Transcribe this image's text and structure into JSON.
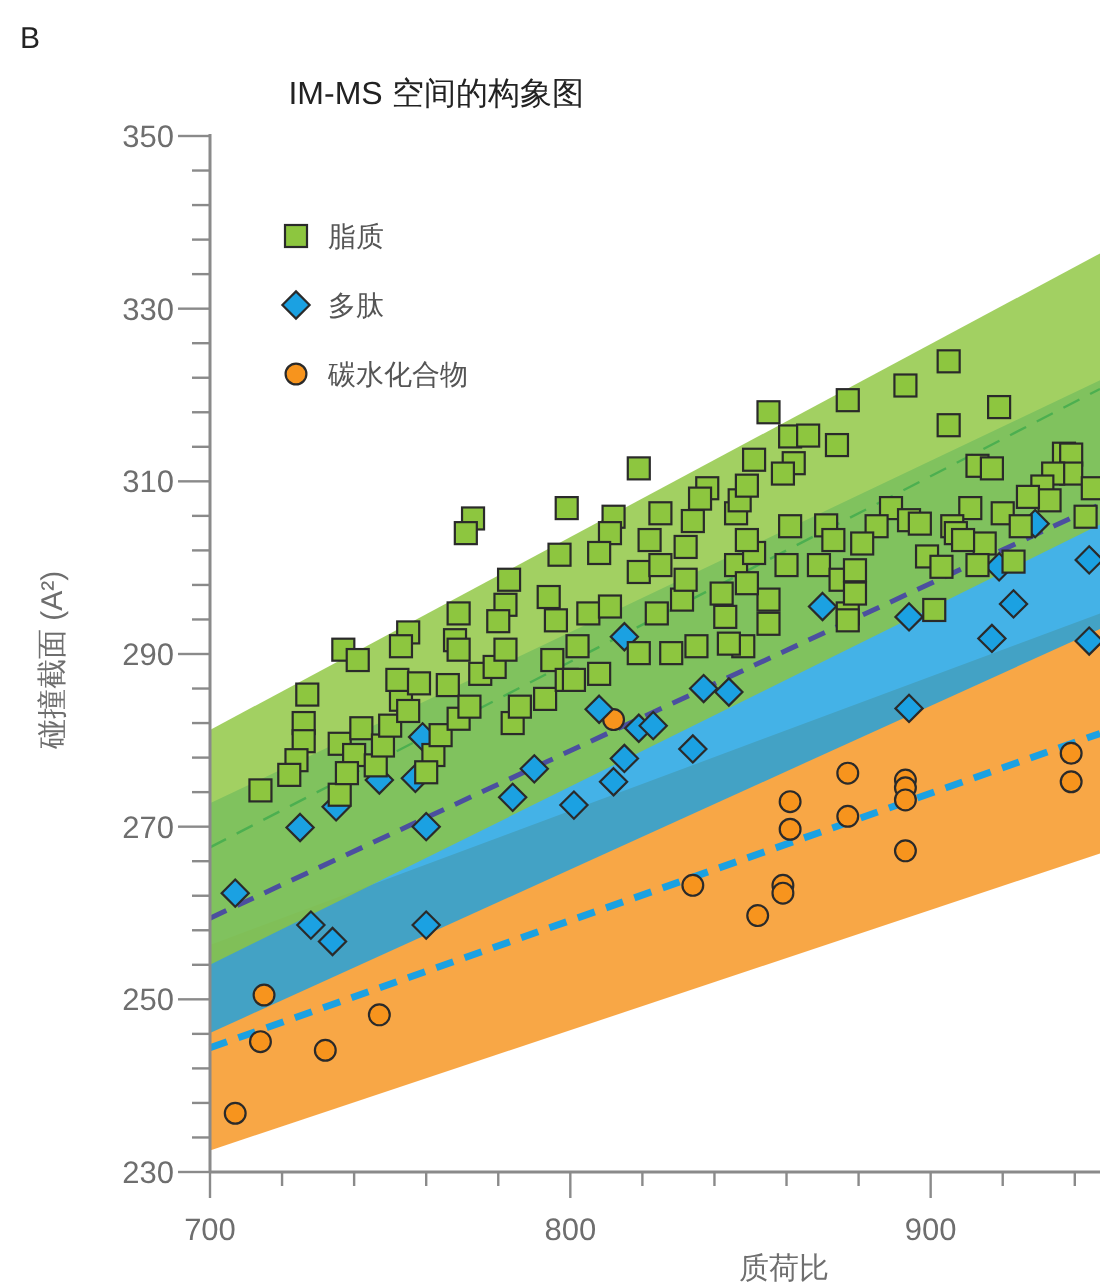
{
  "chart_data": {
    "type": "scatter",
    "title": "IM-MS 空间的构象图",
    "xlabel": "质荷比",
    "ylabel": "碰撞截面 (A²)",
    "annotations": [
      "B"
    ],
    "legend": "top left",
    "xlim": [
      700,
      947
    ],
    "ylim": [
      230,
      350
    ],
    "xticks": [
      700,
      {
        "value": 720,
        "label": null
      },
      {
        "value": 740,
        "label": null
      },
      {
        "value": 760,
        "label": null
      },
      {
        "value": 780,
        "label": null
      },
      800,
      {
        "value": 820,
        "label": null
      },
      {
        "value": 840,
        "label": null
      },
      {
        "value": 860,
        "label": null
      },
      {
        "value": 880,
        "label": null
      },
      900,
      {
        "value": 920,
        "label": null
      },
      {
        "value": 940,
        "label": null
      }
    ],
    "yticks": [
      230,
      {
        "value": 234,
        "label": null
      },
      {
        "value": 238,
        "label": null
      },
      {
        "value": 242,
        "label": null
      },
      {
        "value": 246,
        "label": null
      },
      250,
      {
        "value": 254,
        "label": null
      },
      {
        "value": 258,
        "label": null
      },
      {
        "value": 262,
        "label": null
      },
      {
        "value": 266,
        "label": null
      },
      270,
      {
        "value": 274,
        "label": null
      },
      {
        "value": 278,
        "label": null
      },
      {
        "value": 282,
        "label": null
      },
      {
        "value": 286,
        "label": null
      },
      290,
      {
        "value": 294,
        "label": null
      },
      {
        "value": 298,
        "label": null
      },
      {
        "value": 302,
        "label": null
      },
      {
        "value": 306,
        "label": null
      },
      310,
      {
        "value": 314,
        "label": null
      },
      {
        "value": 318,
        "label": null
      },
      {
        "value": 322,
        "label": null
      },
      {
        "value": 326,
        "label": null
      },
      330,
      {
        "value": 334,
        "label": null
      },
      {
        "value": 338,
        "label": null
      },
      {
        "value": 342,
        "label": null
      },
      {
        "value": 346,
        "label": null
      },
      350
    ],
    "series": [
      {
        "name": "脂质",
        "type": "scatter",
        "marker": "square",
        "color": "#8dc63f",
        "x": [
          773,
          771,
          799,
          797,
          783,
          782,
          769,
          780,
          755,
          753,
          737,
          741,
          768,
          794,
          796,
          727,
          726,
          726,
          724,
          722,
          714,
          736,
          740,
          736,
          738,
          742,
          746,
          748,
          750,
          753,
          752,
          758,
          755,
          762,
          760,
          764,
          766,
          769,
          772,
          775,
          779,
          784,
          786,
          793,
          782,
          795,
          799,
          769,
          855,
          819,
          812,
          825,
          811,
          808,
          822,
          832,
          834,
          838,
          836,
          846,
          847,
          849,
          851,
          861,
          866,
          862,
          859,
          874,
          877,
          819,
          825,
          831,
          842,
          846,
          851,
          849,
          861,
          860,
          871,
          873,
          869,
          875,
          855,
          855,
          835,
          843,
          828,
          819,
          805,
          802,
          811,
          832,
          824,
          848,
          877,
          849,
          905,
          893,
          919,
          905,
          913,
          917,
          937,
          939,
          939,
          934,
          931,
          945,
          933,
          927,
          920,
          925,
          943,
          911,
          889,
          885,
          894,
          897,
          906,
          907,
          915,
          909,
          899,
          903,
          913,
          923,
          881,
          879,
          877,
          901,
          879,
          801,
          808,
          844
        ],
        "values": [
          305.7,
          304.0,
          306.9,
          301.5,
          298.6,
          295.7,
          294.7,
          293.8,
          292.5,
          290.9,
          290.5,
          289.3,
          291.6,
          296.6,
          293.9,
          285.3,
          282.0,
          279.9,
          277.7,
          276.0,
          274.2,
          279.6,
          278.3,
          273.7,
          276.2,
          281.4,
          277.1,
          279.4,
          281.7,
          284.7,
          287.0,
          286.6,
          283.4,
          278.3,
          276.3,
          280.6,
          286.4,
          282.5,
          283.9,
          287.7,
          288.5,
          282.0,
          283.9,
          284.8,
          290.5,
          289.3,
          287.0,
          290.5,
          318.0,
          311.5,
          305.9,
          306.3,
          304.0,
          301.7,
          303.2,
          302.4,
          305.4,
          309.2,
          308.0,
          306.3,
          307.8,
          309.5,
          312.5,
          315.2,
          315.3,
          312.1,
          310.9,
          314.2,
          319.4,
          299.5,
          300.3,
          296.3,
          297.0,
          300.3,
          301.7,
          303.2,
          304.8,
          300.3,
          304.9,
          303.2,
          300.3,
          298.6,
          296.3,
          293.5,
          290.9,
          294.3,
          290.1,
          290.1,
          294.7,
          290.9,
          295.5,
          298.6,
          294.7,
          290.9,
          294.7,
          298.2,
          323.9,
          321.1,
          318.6,
          316.5,
          311.8,
          311.5,
          313.2,
          313.1,
          310.9,
          310.9,
          309.4,
          309.2,
          307.8,
          308.2,
          306.3,
          304.8,
          305.9,
          306.9,
          306.9,
          304.8,
          305.5,
          305.1,
          304.8,
          304.0,
          302.8,
          303.2,
          301.3,
          300.1,
          300.3,
          300.7,
          302.8,
          299.7,
          293.9,
          295.1,
          297.0,
          287.0,
          287.7,
          291.2
        ]
      },
      {
        "name": "多肽",
        "type": "scatter",
        "marker": "diamond",
        "color": "#1ba1e2",
        "x": [
          707,
          725,
          728,
          734,
          735,
          747,
          757,
          760,
          760,
          759,
          784,
          790,
          801,
          808,
          812,
          815,
          819,
          823,
          834,
          837,
          844,
          815,
          870,
          894,
          929,
          919,
          923,
          917,
          944,
          944,
          894
        ],
        "values": [
          262.3,
          269.9,
          258.6,
          256.7,
          272.3,
          275.4,
          275.6,
          270.0,
          258.6,
          280.4,
          273.4,
          276.7,
          272.5,
          283.6,
          275.2,
          277.9,
          281.4,
          281.7,
          279.0,
          286.0,
          285.6,
          292.0,
          295.5,
          294.3,
          305.1,
          300.1,
          295.8,
          291.8,
          300.9,
          291.5,
          283.7
        ]
      },
      {
        "name": "碳水化合物",
        "type": "scatter",
        "marker": "circle",
        "color": "#f7941d",
        "x": [
          715,
          714,
          732,
          747,
          707,
          812,
          834,
          852,
          859,
          859,
          861,
          861,
          877,
          877,
          893,
          893,
          893,
          893,
          939,
          939
        ],
        "values": [
          250.5,
          245.1,
          244.1,
          248.2,
          236.8,
          282.4,
          263.2,
          259.7,
          263.2,
          262.3,
          272.9,
          269.7,
          276.2,
          271.2,
          275.4,
          274.5,
          273.1,
          267.2,
          278.5,
          275.2
        ]
      },
      {
        "type": "line",
        "line_style": "dashed",
        "color": "#4caf50",
        "x": [
          700,
          947
        ],
        "values": [
          267.6,
          320.7
        ],
        "lower": [
          254.0,
          305.0
        ],
        "upper": [
          281.2,
          336.4
        ]
      },
      {
        "type": "line",
        "line_style": "dashed",
        "color": "#4b4f9f",
        "x": [
          700,
          947
        ],
        "values": [
          259.4,
          307.3
        ],
        "lower": [
          246.1,
          292.9
        ],
        "upper": [
          272.7,
          321.7
        ]
      },
      {
        "type": "line",
        "line_style": "dashed",
        "color": "#1ba1e2",
        "x": [
          700,
          947
        ],
        "values": [
          244.4,
          280.8
        ],
        "lower": [
          232.5,
          266.9
        ],
        "upper": [
          256.3,
          294.7
        ]
      }
    ]
  }
}
